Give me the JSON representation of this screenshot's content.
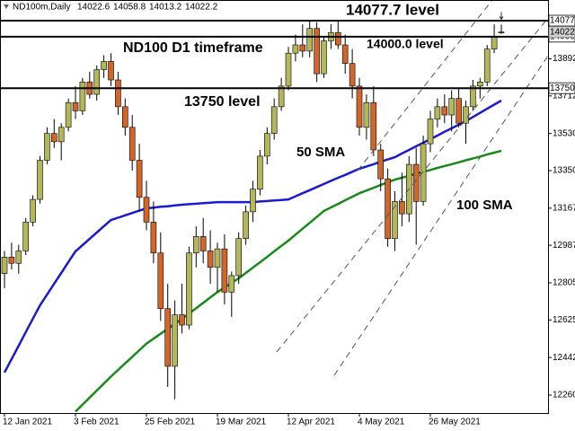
{
  "chart_data": {
    "type": "candlestick",
    "symbol": "ND100m,Daily",
    "header_prices": [
      14022.6,
      14058.8,
      14013.2,
      14022.2
    ],
    "annotations": [
      "14077.7 level",
      "14000.0 level",
      "ND100 D1 timeframe",
      "13750 level"
    ],
    "levels": [
      14077.7,
      {
        "value": 14000,
        "label": "14000.0"
      },
      {
        "value": 13750,
        "label": "13750.0"
      }
    ],
    "ylim": [
      12173,
      14178
    ],
    "yticks": [
      13892.5,
      {
        "value": 13712.5,
        "label": "13712.5"
      },
      {
        "value": 13530,
        "label": "13530.0"
      },
      {
        "value": 13350,
        "label": "13350.0"
      },
      13167.5,
      12987.5,
      {
        "value": 12805,
        "label": "12805.0"
      },
      {
        "value": 12625,
        "label": "12625.0"
      },
      12442.5,
      {
        "value": 12260,
        "label": "12260.0"
      }
    ],
    "up_color": "#b4b65a",
    "down_color": "#d2662a",
    "categories": [
      "12 Jan 2021",
      null,
      null,
      null,
      null,
      null,
      null,
      null,
      null,
      null,
      "3 Feb 2021",
      null,
      null,
      null,
      null,
      null,
      null,
      null,
      null,
      null,
      "25 Feb 2021",
      null,
      null,
      null,
      null,
      null,
      null,
      null,
      null,
      null,
      "19 Mar 2021",
      null,
      null,
      null,
      null,
      null,
      null,
      null,
      null,
      null,
      "12 Apr 2021",
      null,
      null,
      null,
      null,
      null,
      null,
      null,
      null,
      null,
      "4 May 2021",
      null,
      null,
      null,
      null,
      null,
      null,
      null,
      null,
      null,
      "26 May 2021",
      null,
      null,
      null,
      null,
      null,
      null,
      null,
      null,
      null,
      null
    ],
    "candles": [
      [
        12850,
        12960,
        12780,
        12930
      ],
      [
        12930,
        13000,
        12870,
        12900
      ],
      [
        12900,
        12990,
        12850,
        12960
      ],
      [
        12960,
        13120,
        12940,
        13100
      ],
      [
        13100,
        13230,
        13080,
        13210
      ],
      [
        13210,
        13420,
        13190,
        13400
      ],
      [
        13400,
        13560,
        13380,
        13530
      ],
      [
        13530,
        13600,
        13460,
        13490
      ],
      [
        13490,
        13580,
        13400,
        13560
      ],
      [
        13560,
        13700,
        13540,
        13680
      ],
      [
        13680,
        13760,
        13600,
        13640
      ],
      [
        13640,
        13800,
        13620,
        13780
      ],
      [
        13780,
        13830,
        13700,
        13720
      ],
      [
        13720,
        13860,
        13690,
        13840
      ],
      [
        13840,
        13910,
        13800,
        13880
      ],
      [
        13880,
        13920,
        13760,
        13790
      ],
      [
        13790,
        13830,
        13620,
        13660
      ],
      [
        13660,
        13700,
        13520,
        13560
      ],
      [
        13560,
        13620,
        13350,
        13400
      ],
      [
        13400,
        13480,
        13150,
        13220
      ],
      [
        13220,
        13300,
        13060,
        13100
      ],
      [
        13100,
        13200,
        12900,
        12950
      ],
      [
        12950,
        13050,
        12620,
        12680
      ],
      [
        12680,
        12800,
        12300,
        12400
      ],
      [
        12400,
        12720,
        12240,
        12650
      ],
      [
        12650,
        12800,
        12560,
        12600
      ],
      [
        12600,
        12980,
        12580,
        12950
      ],
      [
        12950,
        13080,
        12880,
        13030
      ],
      [
        13030,
        13120,
        12900,
        12960
      ],
      [
        12960,
        13060,
        12800,
        12880
      ],
      [
        12880,
        13000,
        12760,
        12970
      ],
      [
        12970,
        13040,
        12700,
        12760
      ],
      [
        12760,
        12860,
        12640,
        12840
      ],
      [
        12840,
        13050,
        12800,
        13020
      ],
      [
        13020,
        13180,
        12990,
        13150
      ],
      [
        13150,
        13300,
        13100,
        13260
      ],
      [
        13260,
        13450,
        13230,
        13420
      ],
      [
        13420,
        13560,
        13380,
        13530
      ],
      [
        13530,
        13700,
        13500,
        13660
      ],
      [
        13660,
        13800,
        13640,
        13760
      ],
      [
        13760,
        13950,
        13740,
        13920
      ],
      [
        13920,
        14010,
        13880,
        13960
      ],
      [
        13960,
        14060,
        13900,
        13930
      ],
      [
        13930,
        14080,
        13900,
        14040
      ],
      [
        14040,
        14070,
        13780,
        13820
      ],
      [
        13820,
        14000,
        13800,
        13980
      ],
      [
        13980,
        14060,
        13940,
        14020
      ],
      [
        14020,
        14080,
        13940,
        13960
      ],
      [
        13960,
        14010,
        13820,
        13870
      ],
      [
        13870,
        13940,
        13700,
        13760
      ],
      [
        13760,
        13800,
        13520,
        13560
      ],
      [
        13560,
        13720,
        13500,
        13680
      ],
      [
        13680,
        13760,
        13420,
        13450
      ],
      [
        13450,
        13480,
        13250,
        13310
      ],
      [
        13310,
        13360,
        12980,
        13020
      ],
      [
        13020,
        13250,
        12960,
        13200
      ],
      [
        13200,
        13340,
        13080,
        13140
      ],
      [
        13140,
        13420,
        13100,
        13380
      ],
      [
        13380,
        13460,
        12990,
        13200
      ],
      [
        13200,
        13520,
        13180,
        13480
      ],
      [
        13480,
        13640,
        13440,
        13600
      ],
      [
        13600,
        13700,
        13560,
        13660
      ],
      [
        13660,
        13720,
        13580,
        13620
      ],
      [
        13620,
        13740,
        13540,
        13700
      ],
      [
        13700,
        13750,
        13560,
        13580
      ],
      [
        13580,
        13690,
        13480,
        13660
      ],
      [
        13660,
        13790,
        13640,
        13760
      ],
      [
        13760,
        13800,
        13700,
        13780
      ],
      [
        13780,
        13960,
        13760,
        13940
      ],
      [
        13940,
        14060,
        13920,
        14000
      ],
      [
        14022.6,
        14058.8,
        14013.2,
        14022.2
      ]
    ],
    "series": [
      {
        "name": "50 SMA",
        "color": "#1a1ad0",
        "values": [
          12370,
          12435,
          12500,
          12566,
          12631,
          12696,
          12748,
          12801,
          12853,
          12906,
          12958,
          12988,
          13019,
          13049,
          13080,
          13110,
          13121,
          13133,
          13144,
          13156,
          13167,
          13170,
          13174,
          13177,
          13181,
          13184,
          13187,
          13189,
          13192,
          13194,
          13197,
          13197,
          13197,
          13197,
          13197,
          13197,
          13200,
          13202,
          13205,
          13207,
          13210,
          13225,
          13240,
          13255,
          13270,
          13285,
          13300,
          13315,
          13329,
          13344,
          13359,
          13370,
          13381,
          13393,
          13404,
          13415,
          13433,
          13450,
          13468,
          13485,
          13503,
          13520,
          13538,
          13555,
          13573,
          13590,
          13610,
          13630,
          13650,
          13670,
          13690
        ]
      },
      {
        "name": "100 SMA",
        "color": "#1a8a1a",
        "values": [
          null,
          null,
          null,
          null,
          null,
          null,
          null,
          null,
          null,
          null,
          12180,
          12214,
          12248,
          12282,
          12316,
          12350,
          12382,
          12414,
          12446,
          12478,
          12510,
          12534,
          12558,
          12582,
          12606,
          12630,
          12656,
          12682,
          12708,
          12734,
          12760,
          12782,
          12805,
          12827,
          12853,
          12879,
          12905,
          12931,
          12958,
          12984,
          13010,
          13039,
          13068,
          13096,
          13125,
          13154,
          13171,
          13188,
          13206,
          13223,
          13240,
          13253,
          13266,
          13280,
          13293,
          13306,
          13315,
          13325,
          13334,
          13344,
          13353,
          13363,
          13372,
          13381,
          13390,
          13400,
          13409,
          13418,
          13428,
          13437,
          13446
        ]
      }
    ]
  }
}
